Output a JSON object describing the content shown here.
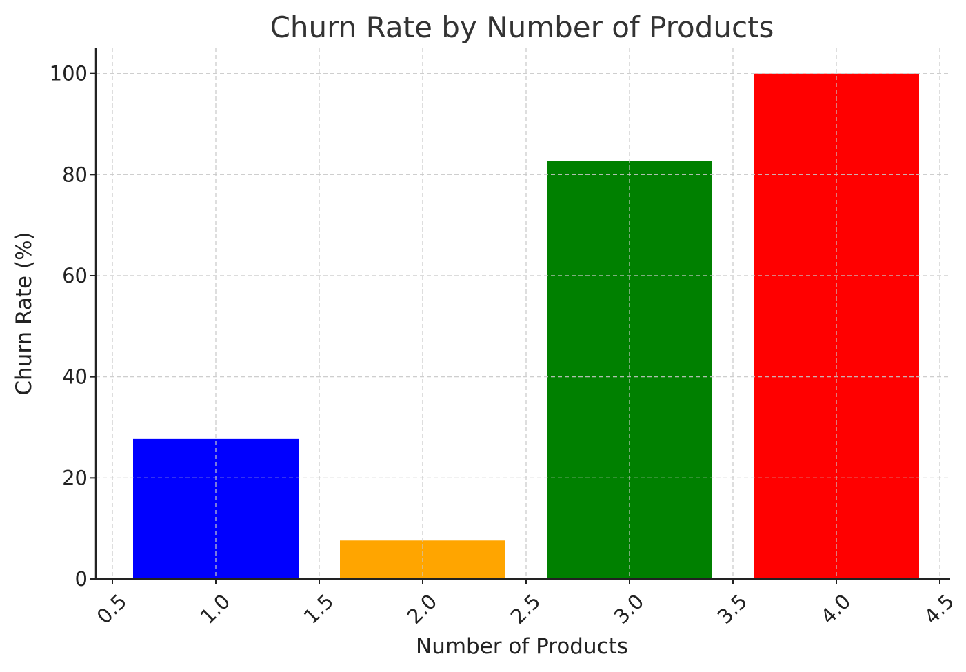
{
  "chart_data": {
    "type": "bar",
    "title": "Churn Rate by Number of Products",
    "xlabel": "Number of Products",
    "ylabel": "Churn Rate (%)",
    "x": [
      1,
      2,
      3,
      4
    ],
    "values": [
      27.7,
      7.6,
      82.7,
      100.0
    ],
    "bar_width": 0.8,
    "colors": [
      "#0000ff",
      "#ffa500",
      "#008000",
      "#ff0000"
    ],
    "xlim": [
      0.42,
      4.55
    ],
    "ylim": [
      0,
      105
    ],
    "xticks": [
      0.5,
      1.0,
      1.5,
      2.0,
      2.5,
      3.0,
      3.5,
      4.0,
      4.5
    ],
    "xtick_labels": [
      "0.5",
      "1.0",
      "1.5",
      "2.0",
      "2.5",
      "3.0",
      "3.5",
      "4.0",
      "4.5"
    ],
    "yticks": [
      0,
      20,
      40,
      60,
      80,
      100
    ],
    "ytick_labels": [
      "0",
      "20",
      "40",
      "60",
      "80",
      "100"
    ],
    "grid": true,
    "legend": "none"
  }
}
